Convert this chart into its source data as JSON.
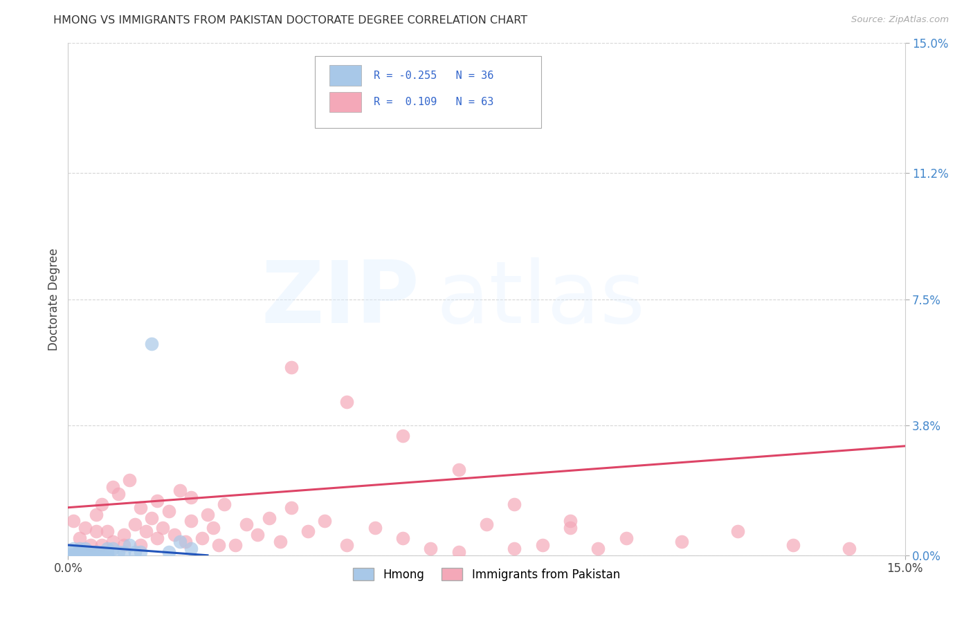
{
  "title": "HMONG VS IMMIGRANTS FROM PAKISTAN DOCTORATE DEGREE CORRELATION CHART",
  "source": "Source: ZipAtlas.com",
  "ylabel": "Doctorate Degree",
  "xlim": [
    0,
    0.15
  ],
  "ylim": [
    0,
    0.15
  ],
  "ytick_values": [
    0.0,
    0.038,
    0.075,
    0.112,
    0.15
  ],
  "ytick_labels": [
    "0.0%",
    "3.8%",
    "7.5%",
    "11.2%",
    "15.0%"
  ],
  "xtick_values": [
    0.0,
    0.15
  ],
  "xtick_labels": [
    "0.0%",
    "15.0%"
  ],
  "background_color": "#ffffff",
  "grid_color": "#cccccc",
  "hmong_color": "#a8c8e8",
  "pakistan_color": "#f4a8b8",
  "hmong_line_color": "#2255bb",
  "pakistan_line_color": "#dd4466",
  "hmong_R": -0.255,
  "hmong_N": 36,
  "pakistan_R": 0.109,
  "pakistan_N": 63,
  "hmong_x": [
    0.0005,
    0.0007,
    0.001,
    0.001,
    0.001,
    0.001,
    0.0015,
    0.002,
    0.002,
    0.002,
    0.002,
    0.003,
    0.003,
    0.003,
    0.003,
    0.004,
    0.004,
    0.005,
    0.005,
    0.005,
    0.005,
    0.006,
    0.006,
    0.007,
    0.007,
    0.007,
    0.008,
    0.009,
    0.01,
    0.011,
    0.012,
    0.013,
    0.015,
    0.018,
    0.02,
    0.022
  ],
  "hmong_y": [
    0.0,
    0.0,
    0.0,
    0.0,
    0.001,
    0.002,
    0.0,
    0.0,
    0.0,
    0.001,
    0.002,
    0.0,
    0.0,
    0.001,
    0.002,
    0.0,
    0.001,
    0.0,
    0.0,
    0.001,
    0.001,
    0.0,
    0.001,
    0.0,
    0.001,
    0.002,
    0.002,
    0.001,
    0.001,
    0.003,
    0.001,
    0.001,
    0.062,
    0.001,
    0.004,
    0.002
  ],
  "pakistan_x": [
    0.001,
    0.002,
    0.003,
    0.004,
    0.005,
    0.005,
    0.006,
    0.006,
    0.007,
    0.008,
    0.008,
    0.009,
    0.01,
    0.01,
    0.011,
    0.012,
    0.013,
    0.013,
    0.014,
    0.015,
    0.016,
    0.016,
    0.017,
    0.018,
    0.019,
    0.02,
    0.021,
    0.022,
    0.022,
    0.024,
    0.025,
    0.026,
    0.027,
    0.028,
    0.03,
    0.032,
    0.034,
    0.036,
    0.038,
    0.04,
    0.043,
    0.046,
    0.05,
    0.055,
    0.06,
    0.065,
    0.07,
    0.075,
    0.08,
    0.085,
    0.09,
    0.095,
    0.1,
    0.11,
    0.12,
    0.13,
    0.14,
    0.04,
    0.05,
    0.06,
    0.07,
    0.08,
    0.09
  ],
  "pakistan_y": [
    0.01,
    0.005,
    0.008,
    0.003,
    0.012,
    0.007,
    0.015,
    0.003,
    0.007,
    0.02,
    0.004,
    0.018,
    0.006,
    0.003,
    0.022,
    0.009,
    0.003,
    0.014,
    0.007,
    0.011,
    0.005,
    0.016,
    0.008,
    0.013,
    0.006,
    0.019,
    0.004,
    0.01,
    0.017,
    0.005,
    0.012,
    0.008,
    0.003,
    0.015,
    0.003,
    0.009,
    0.006,
    0.011,
    0.004,
    0.014,
    0.007,
    0.01,
    0.003,
    0.008,
    0.005,
    0.002,
    0.001,
    0.009,
    0.002,
    0.003,
    0.008,
    0.002,
    0.005,
    0.004,
    0.007,
    0.003,
    0.002,
    0.055,
    0.045,
    0.035,
    0.025,
    0.015,
    0.01
  ],
  "hmong_line_x": [
    0.0,
    0.025
  ],
  "hmong_line_y": [
    0.003,
    0.0
  ],
  "pakistan_line_x": [
    0.0,
    0.15
  ],
  "pakistan_line_y": [
    0.014,
    0.032
  ]
}
